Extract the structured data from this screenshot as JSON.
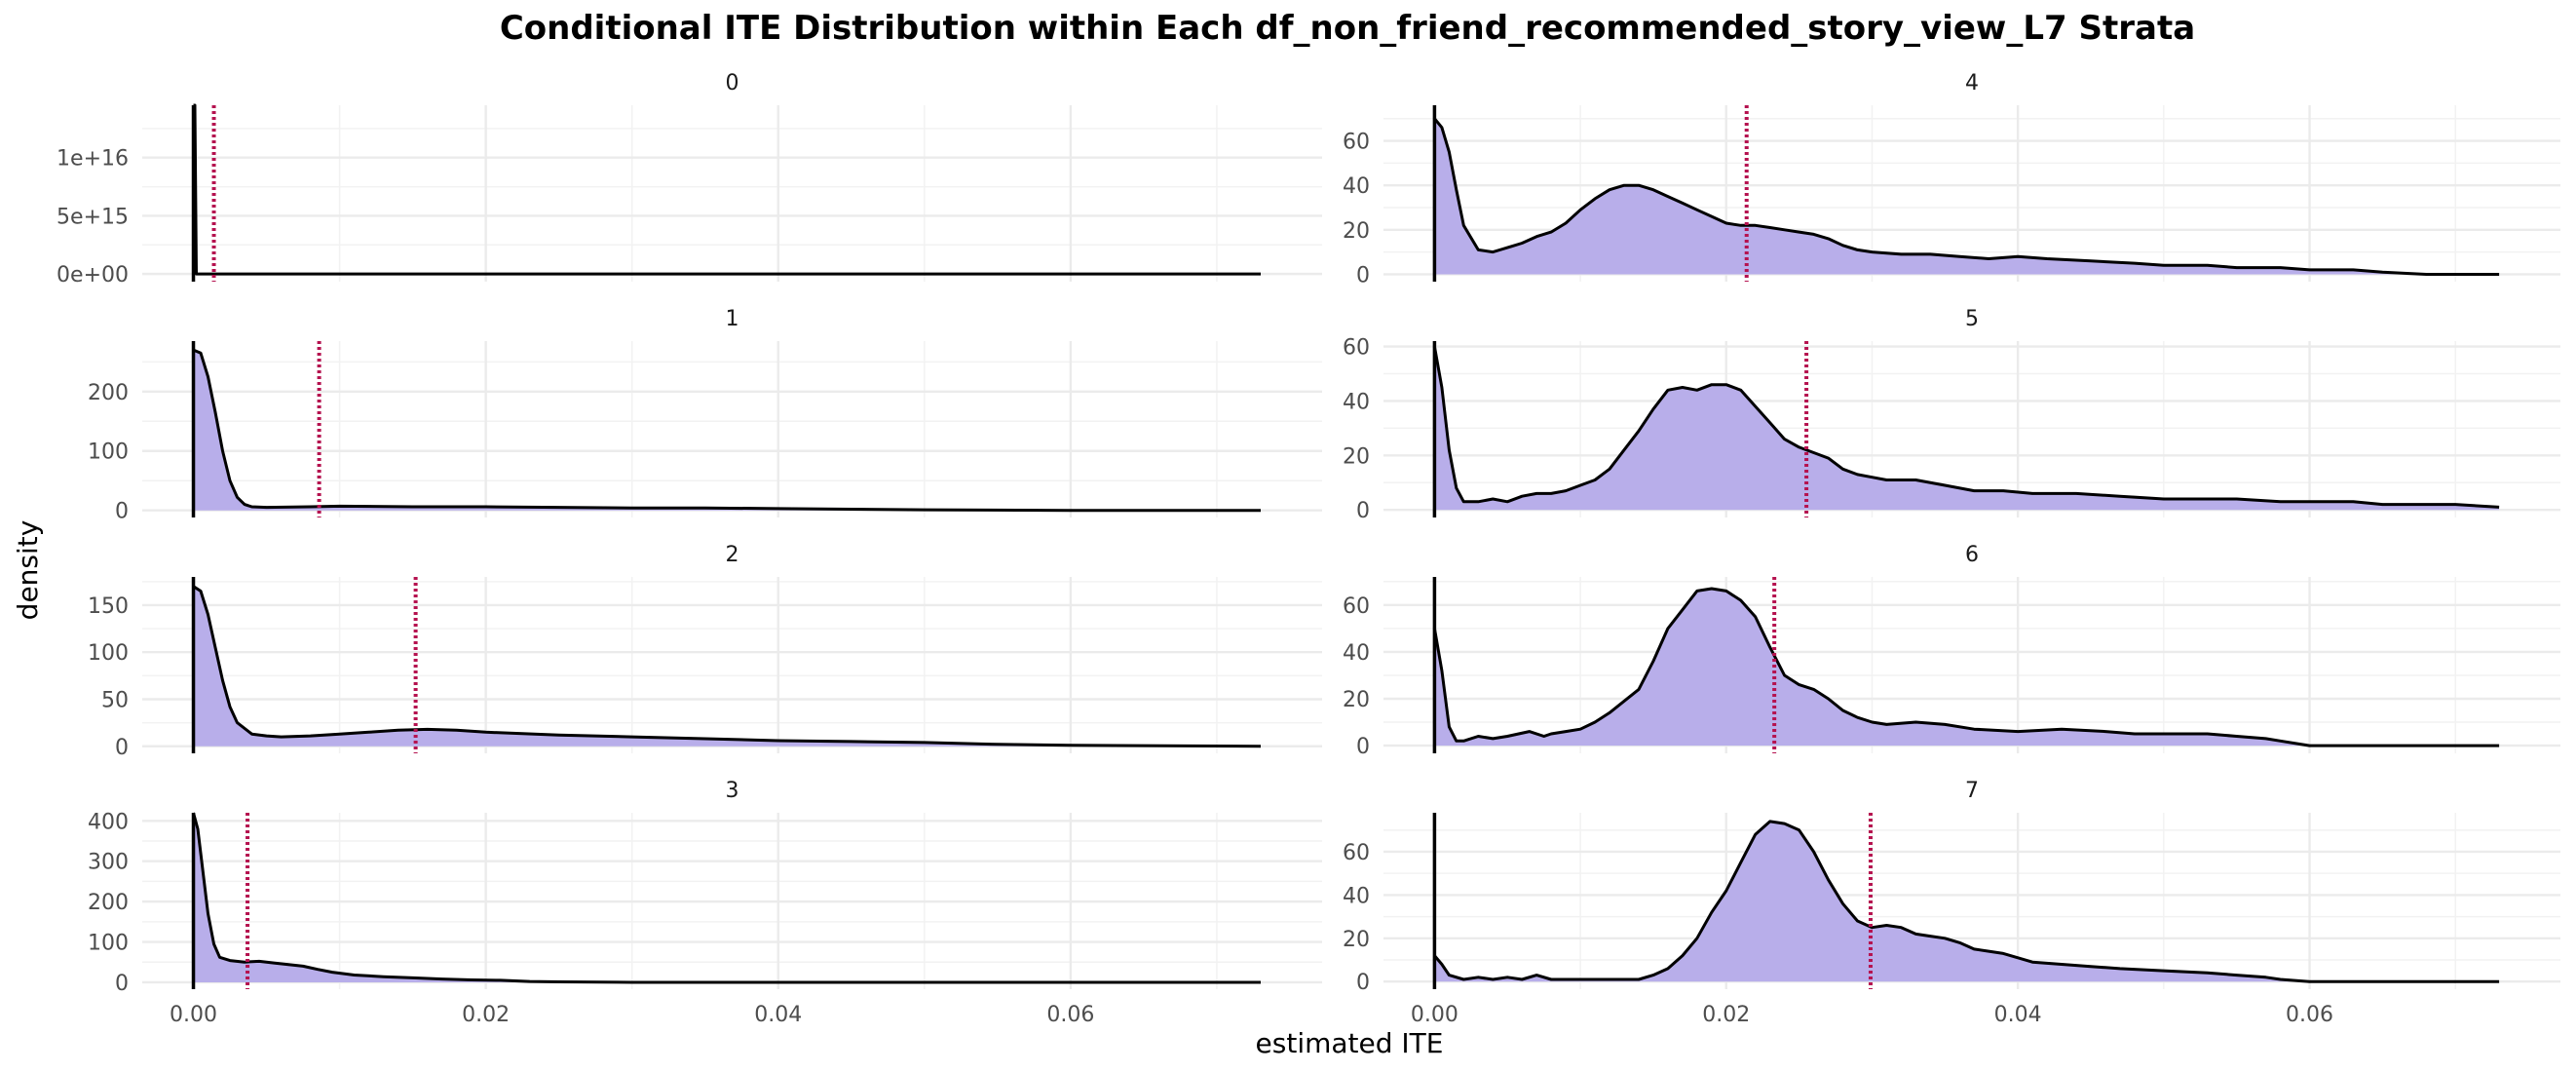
{
  "chart_data": {
    "type": "area",
    "title": "Conditional ITE Distribution within Each df_non_friend_recommended_story_view_L7 Strata",
    "xlabel": "estimated ITE",
    "ylabel": "density",
    "xlim": [
      -0.0035,
      0.0772
    ],
    "x_ticks": [
      0.0,
      0.02,
      0.04,
      0.06
    ],
    "x_tick_labels": [
      "0.00",
      "0.02",
      "0.04",
      "0.06"
    ],
    "grid": true,
    "fill_color": "#b8aeea",
    "line_color": "#000000",
    "median_line_color": "#b5124f",
    "median_line_style": "dotted",
    "panels": [
      {
        "strata": "0",
        "ylim": [
          -660000000000000.0,
          1.45e+16
        ],
        "y_ticks": [
          0,
          5000000000000000.0,
          1e+16
        ],
        "y_tick_labels": [
          "0e+00",
          "5e+15",
          "1e+16"
        ],
        "vline": 0.0014,
        "points": [
          [
            0,
            14500000000000000
          ],
          [
            0.0001,
            14500000000000000
          ],
          [
            0.0002,
            0
          ],
          [
            0.073,
            0
          ]
        ]
      },
      {
        "strata": "1",
        "ylim": [
          -12,
          285
        ],
        "y_ticks": [
          0,
          100,
          200
        ],
        "y_tick_labels": [
          "0",
          "100",
          "200"
        ],
        "vline": 0.0086,
        "points": [
          [
            0,
            270
          ],
          [
            0.0005,
            265
          ],
          [
            0.001,
            225
          ],
          [
            0.0015,
            165
          ],
          [
            0.002,
            100
          ],
          [
            0.0025,
            50
          ],
          [
            0.003,
            22
          ],
          [
            0.0035,
            10
          ],
          [
            0.004,
            6
          ],
          [
            0.005,
            5
          ],
          [
            0.008,
            6
          ],
          [
            0.01,
            7
          ],
          [
            0.015,
            6
          ],
          [
            0.02,
            6
          ],
          [
            0.025,
            5
          ],
          [
            0.03,
            4
          ],
          [
            0.035,
            4
          ],
          [
            0.04,
            3
          ],
          [
            0.045,
            2
          ],
          [
            0.05,
            1
          ],
          [
            0.06,
            0
          ],
          [
            0.073,
            0
          ]
        ]
      },
      {
        "strata": "2",
        "ylim": [
          -7.5,
          180
        ],
        "y_ticks": [
          0,
          50,
          100,
          150
        ],
        "y_tick_labels": [
          "0",
          "50",
          "100",
          "150"
        ],
        "vline": 0.0152,
        "points": [
          [
            0,
            170
          ],
          [
            0.0005,
            165
          ],
          [
            0.001,
            140
          ],
          [
            0.0015,
            105
          ],
          [
            0.002,
            70
          ],
          [
            0.0025,
            42
          ],
          [
            0.003,
            25
          ],
          [
            0.004,
            13
          ],
          [
            0.005,
            11
          ],
          [
            0.006,
            10
          ],
          [
            0.008,
            11
          ],
          [
            0.01,
            13
          ],
          [
            0.012,
            15
          ],
          [
            0.014,
            17
          ],
          [
            0.016,
            18
          ],
          [
            0.018,
            17
          ],
          [
            0.02,
            15
          ],
          [
            0.025,
            12
          ],
          [
            0.03,
            10
          ],
          [
            0.035,
            8
          ],
          [
            0.04,
            6
          ],
          [
            0.045,
            5
          ],
          [
            0.05,
            4
          ],
          [
            0.055,
            2
          ],
          [
            0.06,
            1
          ],
          [
            0.073,
            0
          ]
        ]
      },
      {
        "strata": "3",
        "ylim": [
          -17,
          420
        ],
        "y_ticks": [
          0,
          100,
          200,
          300,
          400
        ],
        "y_tick_labels": [
          "0",
          "100",
          "200",
          "300",
          "400"
        ],
        "vline": 0.0037,
        "points": [
          [
            0,
            420
          ],
          [
            0.0003,
            380
          ],
          [
            0.0006,
            290
          ],
          [
            0.001,
            170
          ],
          [
            0.0014,
            95
          ],
          [
            0.0018,
            62
          ],
          [
            0.0025,
            54
          ],
          [
            0.0035,
            50
          ],
          [
            0.0045,
            52
          ],
          [
            0.0055,
            48
          ],
          [
            0.0065,
            44
          ],
          [
            0.0075,
            40
          ],
          [
            0.0085,
            32
          ],
          [
            0.0095,
            25
          ],
          [
            0.011,
            18
          ],
          [
            0.013,
            14
          ],
          [
            0.015,
            11
          ],
          [
            0.017,
            8
          ],
          [
            0.019,
            6
          ],
          [
            0.021,
            5
          ],
          [
            0.023,
            2
          ],
          [
            0.025,
            1
          ],
          [
            0.03,
            0
          ],
          [
            0.073,
            0
          ]
        ]
      },
      {
        "strata": "4",
        "ylim": [
          -3.3,
          76
        ],
        "y_ticks": [
          0,
          20,
          40,
          60
        ],
        "y_tick_labels": [
          "0",
          "20",
          "40",
          "60"
        ],
        "vline": 0.0214,
        "points": [
          [
            0,
            70
          ],
          [
            0.0005,
            66
          ],
          [
            0.001,
            55
          ],
          [
            0.0015,
            38
          ],
          [
            0.002,
            22
          ],
          [
            0.003,
            11
          ],
          [
            0.004,
            10
          ],
          [
            0.005,
            12
          ],
          [
            0.006,
            14
          ],
          [
            0.007,
            17
          ],
          [
            0.008,
            19
          ],
          [
            0.009,
            23
          ],
          [
            0.01,
            29
          ],
          [
            0.011,
            34
          ],
          [
            0.012,
            38
          ],
          [
            0.013,
            40
          ],
          [
            0.014,
            40
          ],
          [
            0.015,
            38
          ],
          [
            0.016,
            35
          ],
          [
            0.017,
            32
          ],
          [
            0.018,
            29
          ],
          [
            0.019,
            26
          ],
          [
            0.02,
            23
          ],
          [
            0.021,
            22
          ],
          [
            0.022,
            22
          ],
          [
            0.023,
            21
          ],
          [
            0.024,
            20
          ],
          [
            0.025,
            19
          ],
          [
            0.026,
            18
          ],
          [
            0.027,
            16
          ],
          [
            0.028,
            13
          ],
          [
            0.029,
            11
          ],
          [
            0.03,
            10
          ],
          [
            0.032,
            9
          ],
          [
            0.034,
            9
          ],
          [
            0.036,
            8
          ],
          [
            0.038,
            7
          ],
          [
            0.04,
            8
          ],
          [
            0.042,
            7
          ],
          [
            0.045,
            6
          ],
          [
            0.048,
            5
          ],
          [
            0.05,
            4
          ],
          [
            0.053,
            4
          ],
          [
            0.055,
            3
          ],
          [
            0.058,
            3
          ],
          [
            0.06,
            2
          ],
          [
            0.063,
            2
          ],
          [
            0.065,
            1
          ],
          [
            0.068,
            0
          ],
          [
            0.073,
            0
          ]
        ]
      },
      {
        "strata": "5",
        "ylim": [
          -2.8,
          62
        ],
        "y_ticks": [
          0,
          20,
          40,
          60
        ],
        "y_tick_labels": [
          "0",
          "20",
          "40",
          "60"
        ],
        "vline": 0.0255,
        "points": [
          [
            0,
            60
          ],
          [
            0.0005,
            45
          ],
          [
            0.001,
            22
          ],
          [
            0.0015,
            8
          ],
          [
            0.002,
            3
          ],
          [
            0.003,
            3
          ],
          [
            0.004,
            4
          ],
          [
            0.005,
            3
          ],
          [
            0.006,
            5
          ],
          [
            0.007,
            6
          ],
          [
            0.008,
            6
          ],
          [
            0.009,
            7
          ],
          [
            0.01,
            9
          ],
          [
            0.011,
            11
          ],
          [
            0.012,
            15
          ],
          [
            0.013,
            22
          ],
          [
            0.014,
            29
          ],
          [
            0.015,
            37
          ],
          [
            0.016,
            44
          ],
          [
            0.017,
            45
          ],
          [
            0.018,
            44
          ],
          [
            0.019,
            46
          ],
          [
            0.02,
            46
          ],
          [
            0.021,
            44
          ],
          [
            0.022,
            38
          ],
          [
            0.023,
            32
          ],
          [
            0.024,
            26
          ],
          [
            0.025,
            23
          ],
          [
            0.026,
            21
          ],
          [
            0.027,
            19
          ],
          [
            0.028,
            15
          ],
          [
            0.029,
            13
          ],
          [
            0.03,
            12
          ],
          [
            0.031,
            11
          ],
          [
            0.033,
            11
          ],
          [
            0.035,
            9
          ],
          [
            0.037,
            7
          ],
          [
            0.039,
            7
          ],
          [
            0.041,
            6
          ],
          [
            0.044,
            6
          ],
          [
            0.047,
            5
          ],
          [
            0.05,
            4
          ],
          [
            0.055,
            4
          ],
          [
            0.058,
            3
          ],
          [
            0.06,
            3
          ],
          [
            0.063,
            3
          ],
          [
            0.065,
            2
          ],
          [
            0.068,
            2
          ],
          [
            0.07,
            2
          ],
          [
            0.073,
            1
          ]
        ]
      },
      {
        "strata": "6",
        "ylim": [
          -3.3,
          72
        ],
        "y_ticks": [
          0,
          20,
          40,
          60
        ],
        "y_tick_labels": [
          "0",
          "20",
          "40",
          "60"
        ],
        "vline": 0.0233,
        "points": [
          [
            0,
            50
          ],
          [
            0.0005,
            32
          ],
          [
            0.001,
            8
          ],
          [
            0.0015,
            2
          ],
          [
            0.002,
            2
          ],
          [
            0.003,
            4
          ],
          [
            0.004,
            3
          ],
          [
            0.005,
            4
          ],
          [
            0.0065,
            6
          ],
          [
            0.0075,
            4
          ],
          [
            0.008,
            5
          ],
          [
            0.009,
            6
          ],
          [
            0.01,
            7
          ],
          [
            0.011,
            10
          ],
          [
            0.012,
            14
          ],
          [
            0.013,
            19
          ],
          [
            0.014,
            24
          ],
          [
            0.015,
            36
          ],
          [
            0.016,
            50
          ],
          [
            0.017,
            58
          ],
          [
            0.018,
            66
          ],
          [
            0.019,
            67
          ],
          [
            0.02,
            66
          ],
          [
            0.021,
            62
          ],
          [
            0.022,
            55
          ],
          [
            0.023,
            42
          ],
          [
            0.024,
            30
          ],
          [
            0.025,
            26
          ],
          [
            0.026,
            24
          ],
          [
            0.027,
            20
          ],
          [
            0.028,
            15
          ],
          [
            0.029,
            12
          ],
          [
            0.03,
            10
          ],
          [
            0.031,
            9
          ],
          [
            0.033,
            10
          ],
          [
            0.035,
            9
          ],
          [
            0.037,
            7
          ],
          [
            0.04,
            6
          ],
          [
            0.043,
            7
          ],
          [
            0.046,
            6
          ],
          [
            0.048,
            5
          ],
          [
            0.05,
            5
          ],
          [
            0.053,
            5
          ],
          [
            0.055,
            4
          ],
          [
            0.057,
            3
          ],
          [
            0.058,
            2
          ],
          [
            0.06,
            0
          ],
          [
            0.073,
            0
          ]
        ]
      },
      {
        "strata": "7",
        "ylim": [
          -3.5,
          78
        ],
        "y_ticks": [
          0,
          20,
          40,
          60
        ],
        "y_tick_labels": [
          "0",
          "20",
          "40",
          "60"
        ],
        "vline": 0.0299,
        "points": [
          [
            0,
            12
          ],
          [
            0.0005,
            8
          ],
          [
            0.001,
            3
          ],
          [
            0.002,
            1
          ],
          [
            0.003,
            2
          ],
          [
            0.004,
            1
          ],
          [
            0.005,
            2
          ],
          [
            0.006,
            1
          ],
          [
            0.007,
            3
          ],
          [
            0.008,
            1
          ],
          [
            0.01,
            1
          ],
          [
            0.012,
            1
          ],
          [
            0.014,
            1
          ],
          [
            0.015,
            3
          ],
          [
            0.016,
            6
          ],
          [
            0.017,
            12
          ],
          [
            0.018,
            20
          ],
          [
            0.019,
            32
          ],
          [
            0.02,
            42
          ],
          [
            0.021,
            55
          ],
          [
            0.022,
            68
          ],
          [
            0.023,
            74
          ],
          [
            0.024,
            73
          ],
          [
            0.025,
            70
          ],
          [
            0.026,
            60
          ],
          [
            0.027,
            47
          ],
          [
            0.028,
            36
          ],
          [
            0.029,
            28
          ],
          [
            0.03,
            25
          ],
          [
            0.031,
            26
          ],
          [
            0.032,
            25
          ],
          [
            0.033,
            22
          ],
          [
            0.034,
            21
          ],
          [
            0.035,
            20
          ],
          [
            0.036,
            18
          ],
          [
            0.037,
            15
          ],
          [
            0.038,
            14
          ],
          [
            0.039,
            13
          ],
          [
            0.04,
            11
          ],
          [
            0.041,
            9
          ],
          [
            0.043,
            8
          ],
          [
            0.045,
            7
          ],
          [
            0.047,
            6
          ],
          [
            0.05,
            5
          ],
          [
            0.053,
            4
          ],
          [
            0.055,
            3
          ],
          [
            0.057,
            2
          ],
          [
            0.058,
            1
          ],
          [
            0.06,
            0
          ],
          [
            0.073,
            0
          ]
        ]
      }
    ]
  }
}
